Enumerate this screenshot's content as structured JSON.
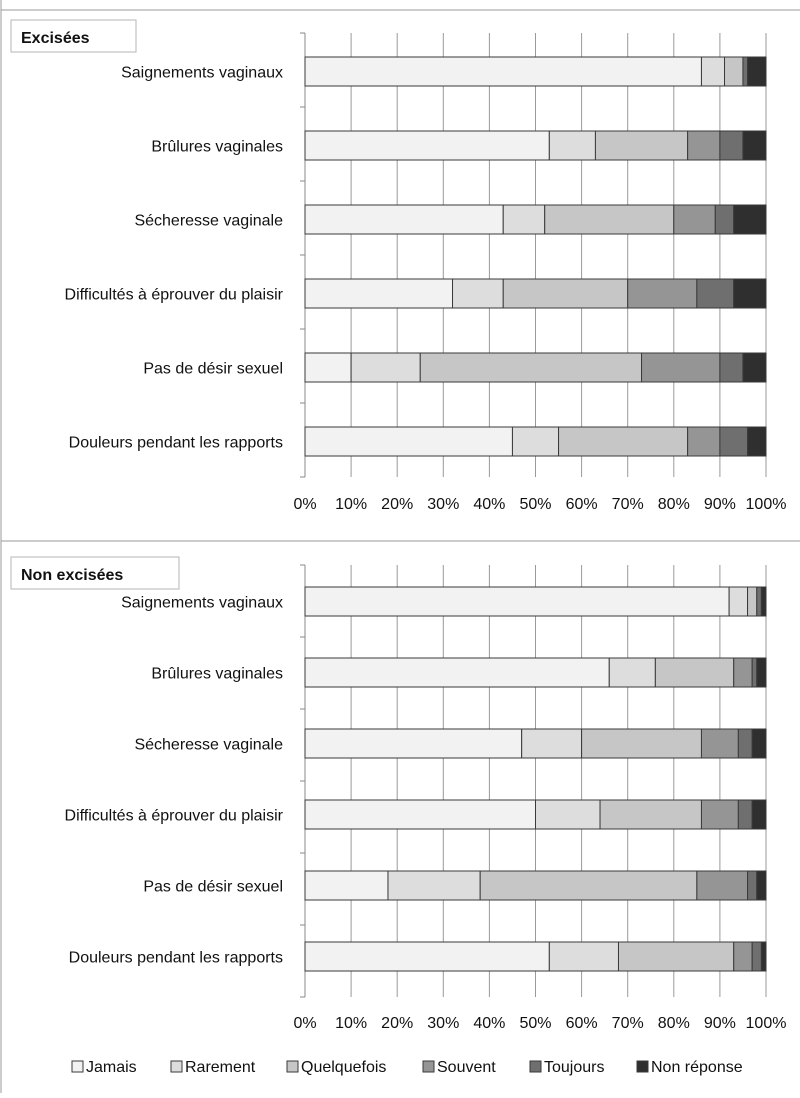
{
  "chart_data": [
    {
      "type": "bar",
      "orientation": "horizontal",
      "stacked": true,
      "percent": true,
      "title": "Excisées",
      "categories": [
        "Saignements vaginaux",
        "Brûlures vaginales",
        "Sécheresse vaginale",
        "Difficultés à éprouver du plaisir",
        "Pas de désir sexuel",
        "Douleurs pendant les rapports"
      ],
      "series": [
        {
          "name": "Jamais",
          "values": [
            86,
            53,
            43,
            32,
            10,
            45
          ]
        },
        {
          "name": "Rarement",
          "values": [
            5,
            10,
            9,
            11,
            15,
            10
          ]
        },
        {
          "name": "Quelquefois",
          "values": [
            4,
            20,
            28,
            27,
            48,
            28
          ]
        },
        {
          "name": "Souvent",
          "values": [
            0,
            7,
            9,
            15,
            17,
            7
          ]
        },
        {
          "name": "Toujours",
          "values": [
            1,
            5,
            4,
            8,
            5,
            6
          ]
        },
        {
          "name": "Non réponse",
          "values": [
            4,
            5,
            7,
            7,
            5,
            4
          ]
        }
      ],
      "xlim": [
        0,
        100
      ],
      "xticks": [
        "0%",
        "10%",
        "20%",
        "30%",
        "40%",
        "50%",
        "60%",
        "70%",
        "80%",
        "90%",
        "100%"
      ],
      "grid": true
    },
    {
      "type": "bar",
      "orientation": "horizontal",
      "stacked": true,
      "percent": true,
      "title": "Non excisées",
      "categories": [
        "Saignements vaginaux",
        "Brûlures vaginales",
        "Sécheresse vaginale",
        "Difficultés à éprouver du plaisir",
        "Pas de désir sexuel",
        "Douleurs pendant les rapports"
      ],
      "series": [
        {
          "name": "Jamais",
          "values": [
            92,
            66,
            47,
            50,
            18,
            53
          ]
        },
        {
          "name": "Rarement",
          "values": [
            4,
            10,
            13,
            14,
            20,
            15
          ]
        },
        {
          "name": "Quelquefois",
          "values": [
            2,
            17,
            26,
            22,
            47,
            25
          ]
        },
        {
          "name": "Souvent",
          "values": [
            0,
            4,
            8,
            8,
            11,
            4
          ]
        },
        {
          "name": "Toujours",
          "values": [
            1,
            1,
            3,
            3,
            2,
            2
          ]
        },
        {
          "name": "Non réponse",
          "values": [
            1,
            2,
            3,
            3,
            2,
            1
          ]
        }
      ],
      "xlim": [
        0,
        100
      ],
      "xticks": [
        "0%",
        "10%",
        "20%",
        "30%",
        "40%",
        "50%",
        "60%",
        "70%",
        "80%",
        "90%",
        "100%"
      ],
      "grid": true
    }
  ],
  "legend": {
    "position": "bottom",
    "items": [
      "Jamais",
      "Rarement",
      "Quelquefois",
      "Souvent",
      "Toujours",
      "Non réponse"
    ]
  },
  "colors": [
    "#f2f2f2",
    "#dddddd",
    "#c6c6c6",
    "#959595",
    "#6f6f6f",
    "#2f2f2f"
  ]
}
